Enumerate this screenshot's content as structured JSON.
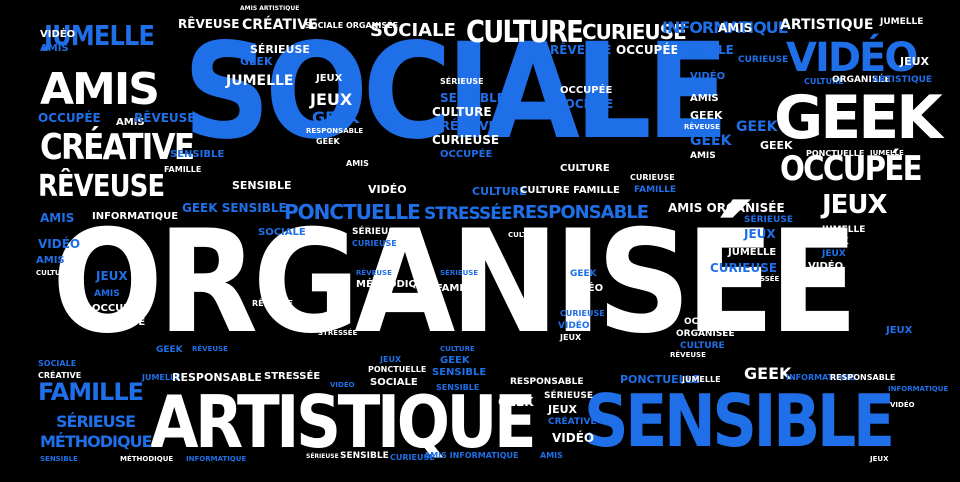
{
  "colors": {
    "background": "#000000",
    "white": "#ffffff",
    "blue": "#1f6fe8"
  },
  "words": {
    "organisee": "ORGANISÉE",
    "sociale": "SOCIALE",
    "artistique": "ARTISTIQUE",
    "sensible": "SENSIBLE",
    "geek": "GEEK",
    "video": "VIDÉO",
    "amis": "AMIS",
    "creative": "CRÉATIVE",
    "reveuse": "RÊVEUSE",
    "jumelle": "JUMELLE",
    "occupee": "OCCUPÉE",
    "jeux": "JEUX",
    "ponctuelle": "PONCTUELLE",
    "stressee": "STRESSÉE",
    "responsable": "RESPONSABLE",
    "culture": "CULTURE",
    "curieuse": "CURIEUSE",
    "informatique": "INFORMATIQUE",
    "famille": "FAMILLE",
    "serieuse": "SÉRIEUSE",
    "methodique": "MÉTHODIQUE",
    "sociale_small": "SOCIALE",
    "organisee_small": "ORGANISÉE",
    "sensible_small": "SENSIBLE",
    "geek_small": "GEEK",
    "amis_small": "AMIS",
    "artistique_small": "ARTISTIQUE",
    "video_small": "VIDÉO",
    "jeux_small": "JEUX",
    "creative_small": "CRÉATIVE",
    "reveuse_small": "RÊVEUSE",
    "occupee_small": "OCCUPÉE",
    "curieuse_small": "CURIEUSE",
    "jumelle_small": "JUMELLE",
    "famille_small": "FAMILLE",
    "culture_small": "CULTURE",
    "serieuse_small": "SÉRIEUSE",
    "responsable_small": "RESPONSABLE",
    "stressee_small": "STRESSÉE",
    "methodique_small": "MÉTHODIQUE",
    "ponctuelle_small": "PONCTUELLE",
    "informatique_small": "INFORMATIQUE",
    "sociale_organisee": "SOCIALE ORGANISÉE",
    "amis_organisee": "AMIS ORGANISÉE",
    "geek_sensible": "GEEK SENSIBLE",
    "culture_famille": "CULTURE FAMILLE",
    "amis_informatique": "AMIS INFORMATIQUE",
    "amis_artistique": "AMIS ARTISTIQUE"
  }
}
